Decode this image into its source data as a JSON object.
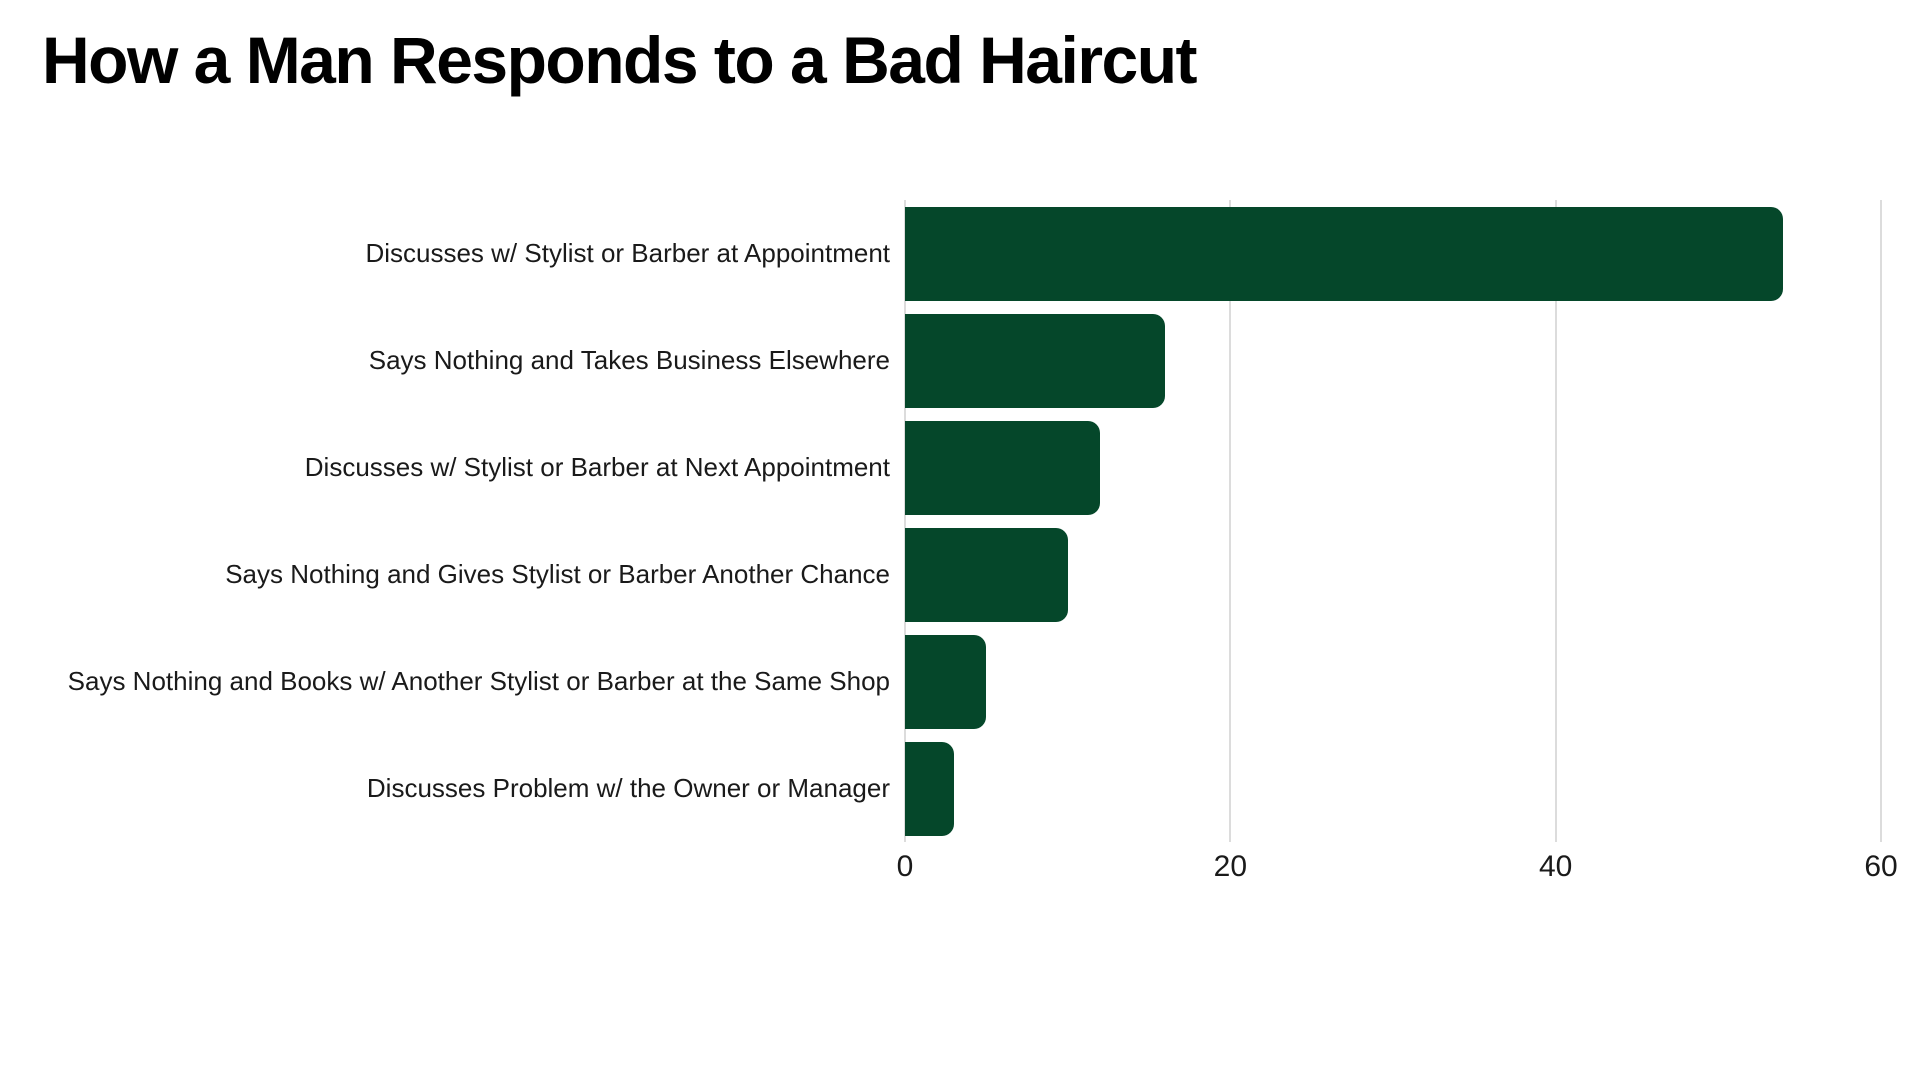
{
  "page": {
    "background_color": "#ffffff"
  },
  "chart_data": {
    "type": "bar",
    "orientation": "horizontal",
    "title": "How a Man Responds to a Bad Haircut",
    "categories": [
      "Discusses w/ Stylist or Barber at Appointment",
      "Says Nothing and Takes Business Elsewhere",
      "Discusses w/ Stylist or Barber at Next Appointment",
      "Says Nothing and Gives Stylist or Barber Another Chance",
      "Says Nothing and Books w/ Another Stylist or Barber at the Same Shop",
      "Discusses Problem w/ the Owner or Manager"
    ],
    "values": [
      54,
      16,
      12,
      10,
      5,
      3
    ],
    "xlabel": "",
    "ylabel": "",
    "xlim": [
      0,
      60
    ],
    "xticks": [
      0,
      20,
      40,
      60
    ],
    "grid": "vertical gridlines on",
    "legend": "none",
    "bar_color": "#05472a",
    "gridline_color": "#dcdcdc",
    "text_color": "#1a1a1a",
    "title_color": "#000000"
  }
}
